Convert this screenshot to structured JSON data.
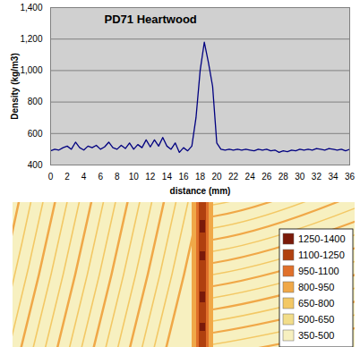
{
  "chart_data": [
    {
      "type": "line",
      "title": "PD71 Heartwood",
      "x_label": "distance (mm)",
      "y_label": "Density (kg/m3)",
      "x": [
        0,
        0.5,
        1,
        1.5,
        2,
        2.5,
        3,
        3.5,
        4,
        4.5,
        5,
        5.5,
        6,
        6.5,
        7,
        7.5,
        8,
        8.5,
        9,
        9.5,
        10,
        10.5,
        11,
        11.5,
        12,
        12.5,
        13,
        13.5,
        14,
        14.5,
        15,
        15.5,
        16,
        16.5,
        17,
        17.5,
        18,
        18.5,
        19,
        19.5,
        20,
        20.5,
        21,
        21.5,
        22,
        22.5,
        23,
        23.5,
        24,
        24.5,
        25,
        25.5,
        26,
        26.5,
        27,
        27.5,
        28,
        28.5,
        29,
        29.5,
        30,
        30.5,
        31,
        31.5,
        32,
        32.5,
        33,
        33.5,
        34,
        34.5,
        35,
        35.5,
        36
      ],
      "values": [
        490,
        500,
        495,
        510,
        520,
        500,
        545,
        510,
        495,
        520,
        510,
        525,
        500,
        515,
        545,
        510,
        500,
        525,
        505,
        540,
        500,
        530,
        510,
        560,
        515,
        560,
        520,
        575,
        520,
        500,
        540,
        480,
        510,
        490,
        520,
        700,
        1000,
        1180,
        1050,
        900,
        540,
        500,
        495,
        500,
        495,
        500,
        495,
        500,
        495,
        490,
        500,
        495,
        500,
        490,
        495,
        480,
        490,
        485,
        495,
        490,
        500,
        495,
        500,
        495,
        505,
        500,
        495,
        505,
        500,
        495,
        500,
        490,
        500
      ],
      "color": "#000080",
      "xlim": [
        0,
        36
      ],
      "xticks": [
        0,
        2,
        4,
        6,
        8,
        10,
        12,
        14,
        16,
        18,
        20,
        22,
        24,
        26,
        28,
        30,
        32,
        34,
        36
      ],
      "ylim": [
        400,
        1400
      ],
      "yticks": [
        400,
        600,
        800,
        1000,
        1200,
        1400
      ],
      "grid": true
    },
    {
      "type": "heatmap",
      "categories": [
        "1250-1400",
        "1100-1250",
        "950-1100",
        "800-950",
        "650-800",
        "500-650",
        "350-500"
      ],
      "colors": [
        "#7a1a0a",
        "#b0400f",
        "#e0702a",
        "#f0a848",
        "#f3c865",
        "#f2dd8a",
        "#f7f0c0"
      ]
    }
  ]
}
